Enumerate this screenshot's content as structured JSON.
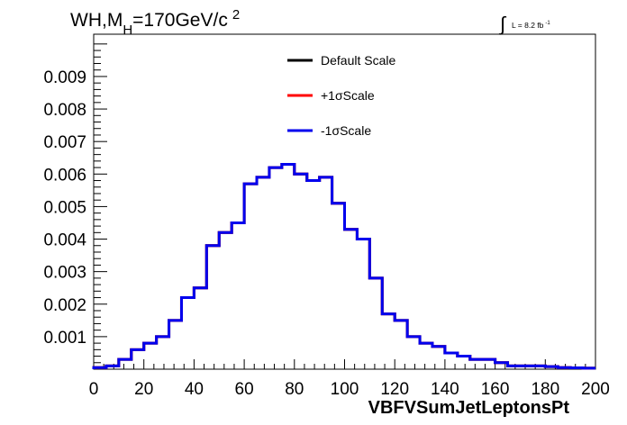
{
  "chart_data": {
    "type": "line",
    "title_main": "WH,M",
    "title_sub": "H",
    "title_tail": "=170GeV/c",
    "title_sup": "2",
    "lumi_text": "L = 8.2 fb",
    "lumi_sup": "-1",
    "xlabel": "VBFVSumJetLeptonsPt",
    "ylabel": "",
    "xlim": [
      0,
      200
    ],
    "ylim": [
      0,
      0.0103
    ],
    "x_ticks": [
      "0",
      "20",
      "40",
      "60",
      "80",
      "100",
      "120",
      "140",
      "160",
      "180",
      "200"
    ],
    "y_ticks": [
      "0.001",
      "0.002",
      "0.003",
      "0.004",
      "0.005",
      "0.006",
      "0.007",
      "0.008",
      "0.009"
    ],
    "legend_position": "top-center",
    "bin_edges": [
      0,
      5,
      10,
      15,
      20,
      25,
      30,
      35,
      40,
      45,
      50,
      55,
      60,
      65,
      70,
      75,
      80,
      85,
      90,
      95,
      100,
      105,
      110,
      115,
      120,
      125,
      130,
      135,
      140,
      145,
      150,
      155,
      160,
      165,
      170,
      175,
      180,
      185,
      190,
      195,
      200
    ],
    "bin_width": 5,
    "series": [
      {
        "name": "Default Scale",
        "color": "#000000",
        "values": [
          5e-05,
          0.0001,
          0.0003,
          0.0006,
          0.0008,
          0.001,
          0.0015,
          0.0022,
          0.0025,
          0.0038,
          0.0042,
          0.0045,
          0.0057,
          0.0059,
          0.0062,
          0.0063,
          0.006,
          0.0058,
          0.0059,
          0.0051,
          0.0043,
          0.004,
          0.0028,
          0.0017,
          0.0015,
          0.001,
          0.0008,
          0.0007,
          0.0005,
          0.0004,
          0.0003,
          0.0003,
          0.0002,
          0.0001,
          0.0001,
          0.0001,
          8e-05,
          5e-05,
          4e-05,
          3e-05
        ]
      },
      {
        "name": "+1σScale",
        "color": "#ff0000",
        "values": [
          5e-05,
          0.0001,
          0.0003,
          0.0006,
          0.0008,
          0.001,
          0.0015,
          0.0022,
          0.0025,
          0.0038,
          0.0042,
          0.0045,
          0.0057,
          0.0059,
          0.0062,
          0.0063,
          0.006,
          0.0058,
          0.0059,
          0.0051,
          0.0043,
          0.004,
          0.0028,
          0.0017,
          0.0015,
          0.001,
          0.0008,
          0.0007,
          0.0005,
          0.0004,
          0.0003,
          0.0003,
          0.0002,
          0.0001,
          0.0001,
          0.0001,
          8e-05,
          5e-05,
          4e-05,
          3e-05
        ]
      },
      {
        "name": "-1σScale",
        "color": "#0000ee",
        "values": [
          5e-05,
          0.0001,
          0.0003,
          0.0006,
          0.0008,
          0.001,
          0.0015,
          0.0022,
          0.0025,
          0.0038,
          0.0042,
          0.0045,
          0.0057,
          0.0059,
          0.0062,
          0.0063,
          0.006,
          0.0058,
          0.0059,
          0.0051,
          0.0043,
          0.004,
          0.0028,
          0.0017,
          0.0015,
          0.001,
          0.0008,
          0.0007,
          0.0005,
          0.0004,
          0.0003,
          0.0003,
          0.0002,
          0.0001,
          0.0001,
          0.0001,
          8e-05,
          5e-05,
          4e-05,
          3e-05
        ]
      }
    ]
  }
}
